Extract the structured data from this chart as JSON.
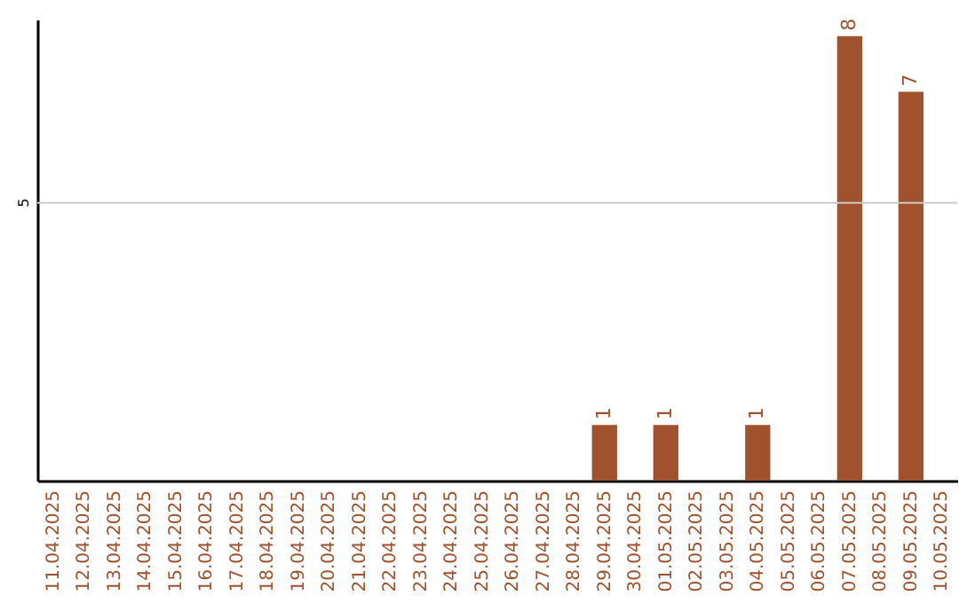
{
  "chart_data": {
    "type": "bar",
    "categories": [
      "11.04.2025",
      "12.04.2025",
      "13.04.2025",
      "14.04.2025",
      "15.04.2025",
      "16.04.2025",
      "17.04.2025",
      "18.04.2025",
      "19.04.2025",
      "20.04.2025",
      "21.04.2025",
      "22.04.2025",
      "23.04.2025",
      "24.04.2025",
      "25.04.2025",
      "26.04.2025",
      "27.04.2025",
      "28.04.2025",
      "29.04.2025",
      "30.04.2025",
      "01.05.2025",
      "02.05.2025",
      "03.05.2025",
      "04.05.2025",
      "05.05.2025",
      "06.05.2025",
      "07.05.2025",
      "08.05.2025",
      "09.05.2025",
      "10.05.2025"
    ],
    "values": [
      null,
      null,
      null,
      null,
      null,
      null,
      null,
      null,
      null,
      null,
      null,
      null,
      null,
      null,
      null,
      null,
      null,
      null,
      1,
      null,
      1,
      null,
      null,
      1,
      null,
      null,
      8,
      null,
      7,
      null
    ],
    "data_labels": true,
    "color": "#a0522d",
    "ylim": [
      0,
      8.3
    ],
    "ref_lines": [
      {
        "axis": "y",
        "value": 5,
        "label": "5",
        "color": "#cccccc"
      }
    ]
  }
}
